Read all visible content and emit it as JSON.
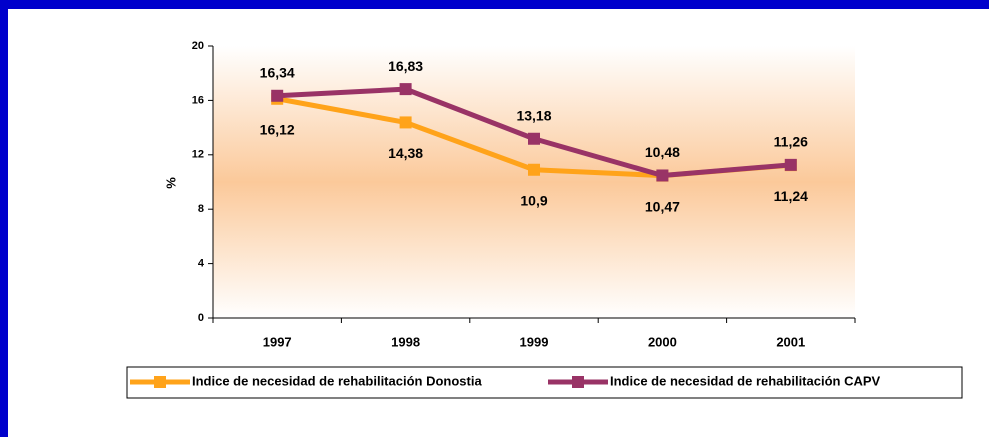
{
  "chart_data": {
    "type": "line",
    "y_label": "%",
    "categories": [
      "1997",
      "1998",
      "1999",
      "2000",
      "2001"
    ],
    "series": [
      {
        "name": "Indice de necesidad de rehabilitación Donostia",
        "color": "#FFA31A",
        "values": [
          16.12,
          14.38,
          10.9,
          10.47,
          11.24
        ],
        "value_labels": [
          "16,12",
          "14,38",
          "10,9",
          "10,47",
          "11,24"
        ]
      },
      {
        "name": "Indice de necesidad de rehabilitación CAPV",
        "color": "#993366",
        "values": [
          16.34,
          16.83,
          13.18,
          10.48,
          11.26
        ],
        "value_labels": [
          "16,34",
          "16,83",
          "13,18",
          "10,48",
          "11,26"
        ]
      }
    ],
    "ylim": [
      0,
      20
    ],
    "yticks": [
      0,
      4,
      8,
      12,
      16,
      20
    ],
    "legend": "bottom"
  }
}
